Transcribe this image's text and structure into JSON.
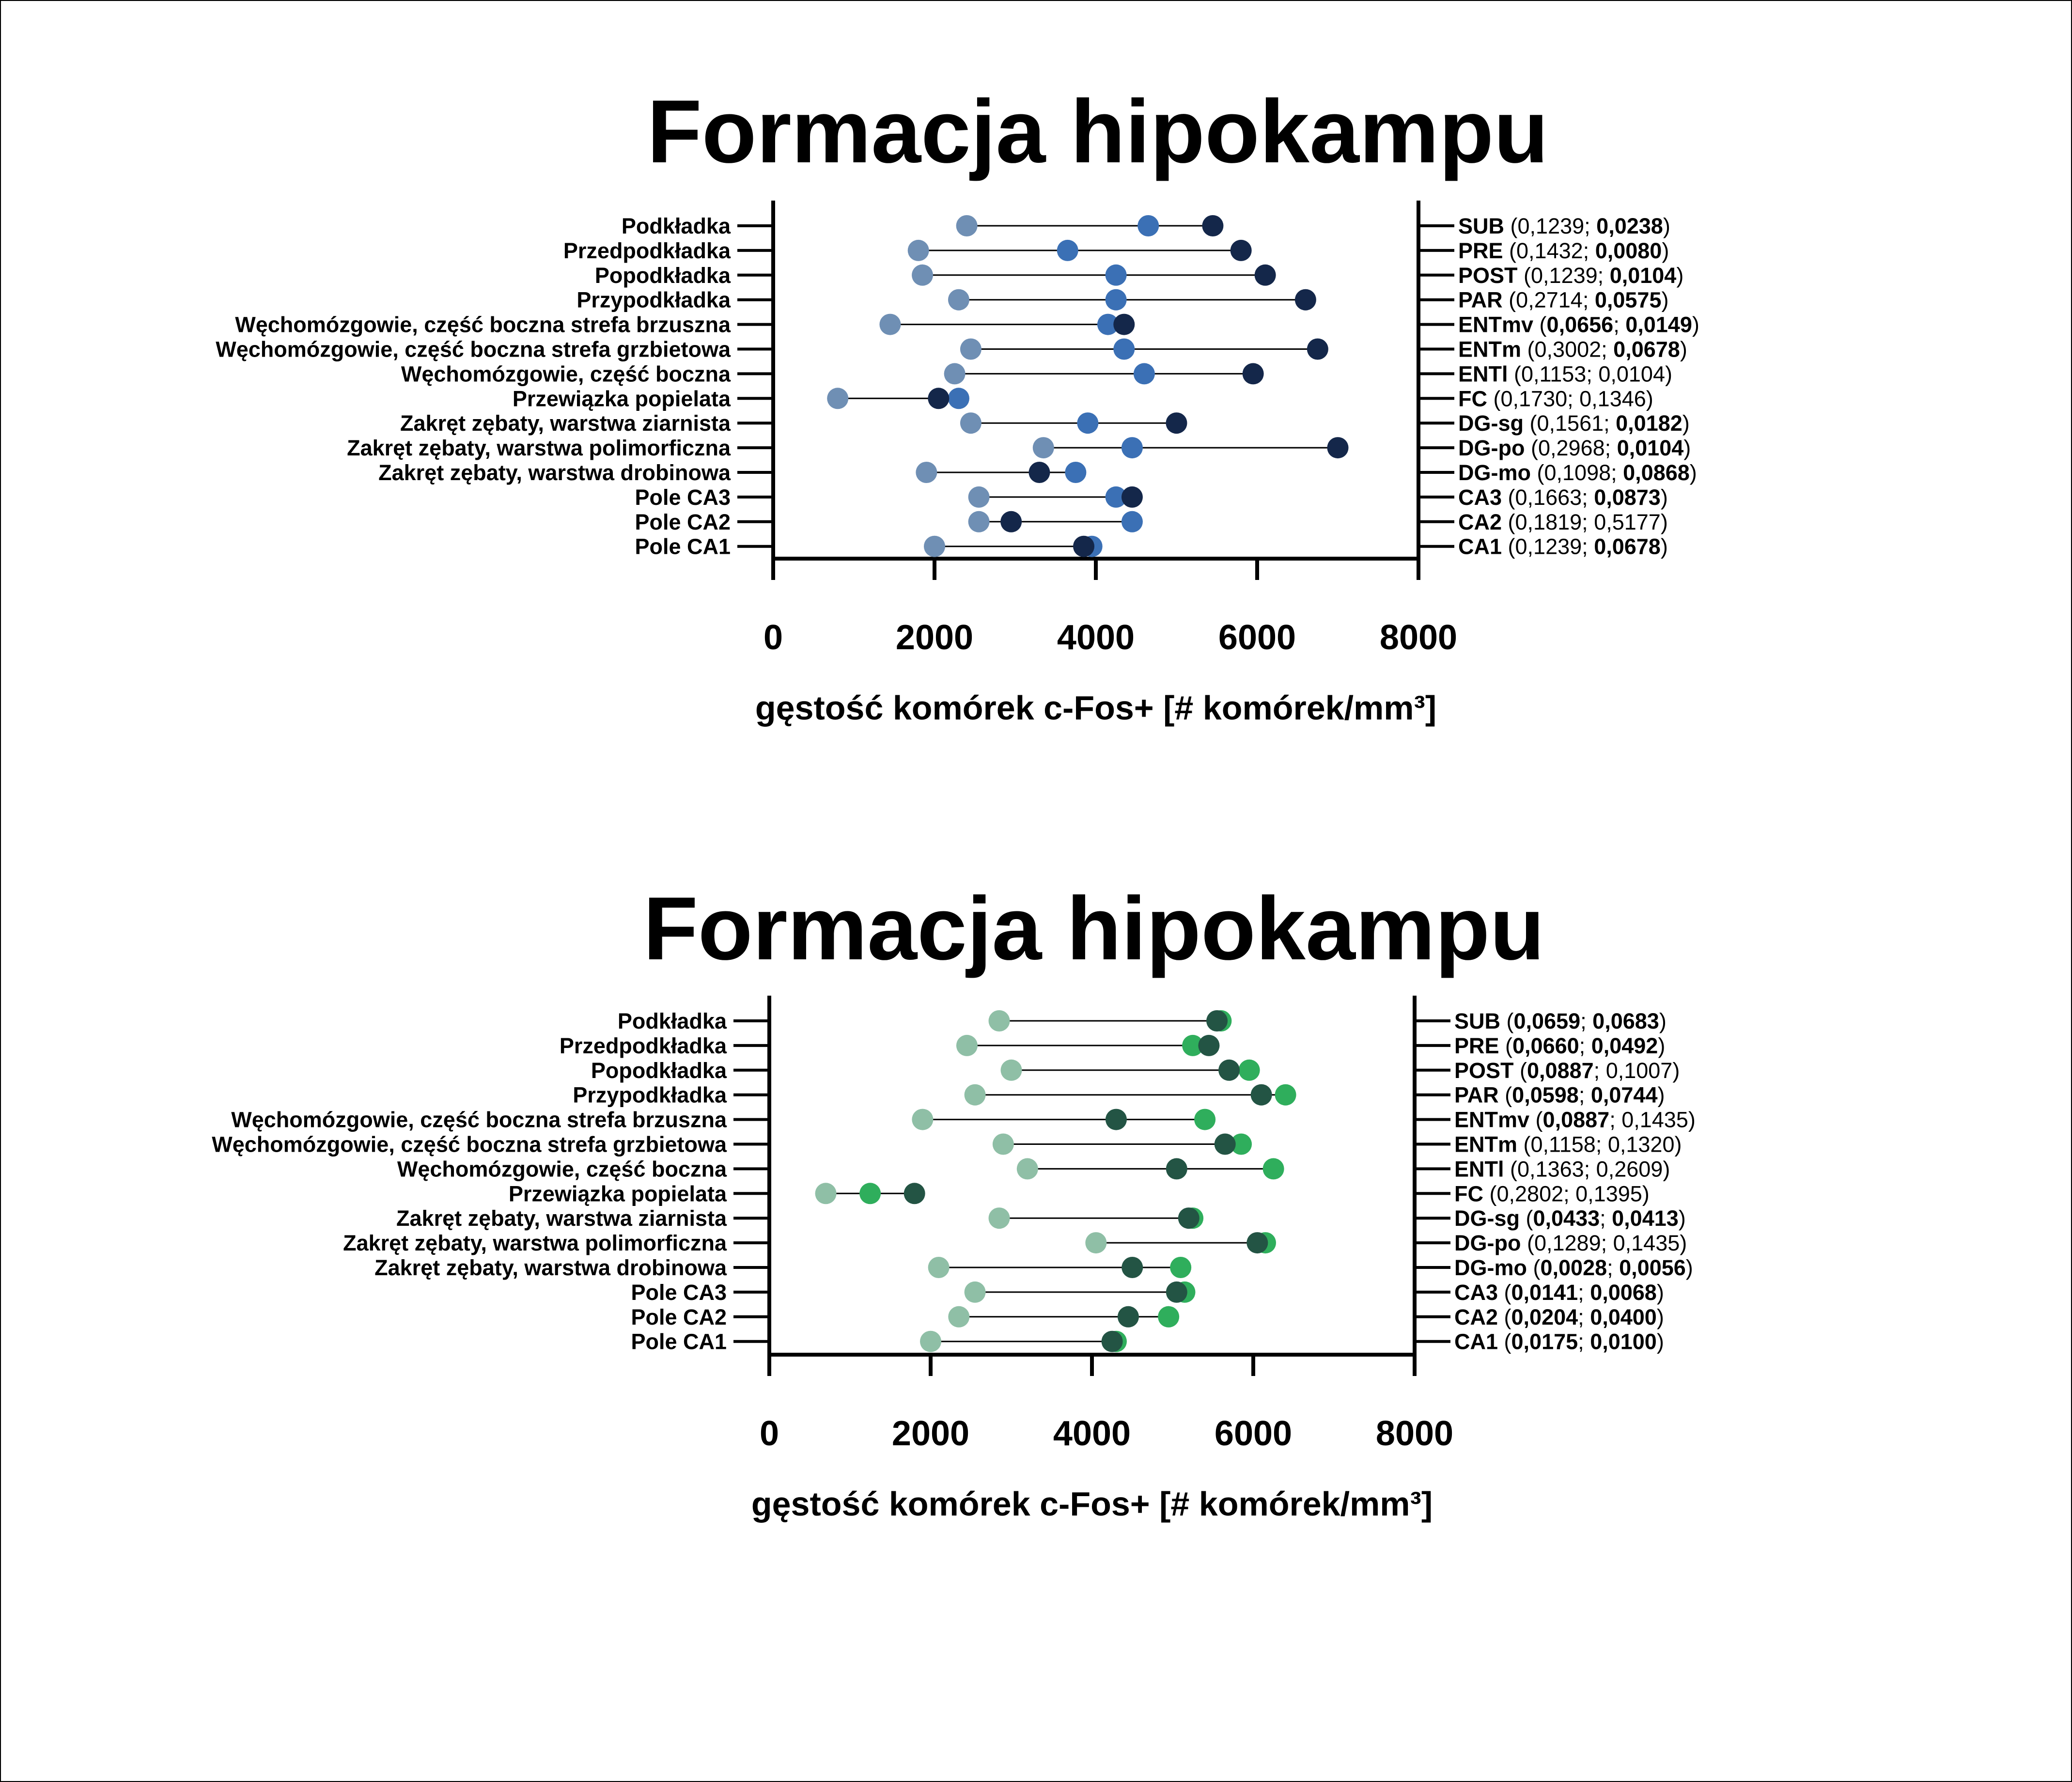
{
  "chart_data": [
    {
      "type": "dumbbell",
      "title": "Formacja hipokampu",
      "xlabel": "gęstość  komórek c-Fos+ [# komórek/mm³]",
      "xlim": [
        0,
        8000
      ],
      "xticks": [
        "0",
        "2000",
        "4000",
        "6000",
        "8000"
      ],
      "categories": [
        "Podkładka",
        "Przedpodkładka",
        "Popodkładka",
        "Przypodkładka",
        "Węchomózgowie, część boczna strefa brzuszna",
        "Węchomózgowie, część boczna strefa grzbietowa",
        "Węchomózgowie, część boczna",
        "Przewiązka popielata",
        "Zakręt zębaty, warstwa ziarnista",
        "Zakręt zębaty, warstwa polimorficzna",
        "Zakręt zębaty, warstwa drobinowa",
        "Pole CA3",
        "Pole CA2",
        "Pole CA1"
      ],
      "series": [
        {
          "color": "#6f8fb4",
          "values": [
            2400,
            1800,
            1850,
            2300,
            1450,
            2450,
            2250,
            800,
            2450,
            3350,
            1900,
            2550,
            2550,
            2000
          ]
        },
        {
          "color": "#3b70b5",
          "values": [
            4650,
            3650,
            4250,
            4250,
            4150,
            4350,
            4600,
            2300,
            3900,
            4450,
            3750,
            4250,
            4450,
            3950
          ]
        },
        {
          "color": "#14274a",
          "values": [
            5450,
            5800,
            6100,
            6600,
            4350,
            6750,
            5950,
            2050,
            5000,
            7000,
            3300,
            4450,
            2950,
            3850
          ]
        }
      ],
      "annotations": [
        {
          "abbr": "SUB",
          "p1": "0,1239",
          "p1_bold": false,
          "p2": "0,0238",
          "p2_bold": true
        },
        {
          "abbr": "PRE",
          "p1": "0,1432",
          "p1_bold": false,
          "p2": "0,0080",
          "p2_bold": true
        },
        {
          "abbr": "POST",
          "p1": "0,1239",
          "p1_bold": false,
          "p2": "0,0104",
          "p2_bold": true
        },
        {
          "abbr": "PAR",
          "p1": "0,2714",
          "p1_bold": false,
          "p2": "0,0575",
          "p2_bold": true
        },
        {
          "abbr": "ENTmv",
          "p1": "0,0656",
          "p1_bold": true,
          "p2": "0,0149",
          "p2_bold": true
        },
        {
          "abbr": "ENTm",
          "p1": "0,3002",
          "p1_bold": false,
          "p2": "0,0678",
          "p2_bold": true
        },
        {
          "abbr": "ENTl",
          "p1": "0,1153",
          "p1_bold": false,
          "p2": "0,0104",
          "p2_bold": false
        },
        {
          "abbr": "FC",
          "p1": "0,1730",
          "p1_bold": false,
          "p2": "0,1346",
          "p2_bold": false
        },
        {
          "abbr": "DG-sg",
          "p1": "0,1561",
          "p1_bold": false,
          "p2": "0,0182",
          "p2_bold": true
        },
        {
          "abbr": "DG-po",
          "p1": "0,2968",
          "p1_bold": false,
          "p2": "0,0104",
          "p2_bold": true
        },
        {
          "abbr": "DG-mo",
          "p1": "0,1098",
          "p1_bold": false,
          "p2": "0,0868",
          "p2_bold": true
        },
        {
          "abbr": "CA3",
          "p1": "0,1663",
          "p1_bold": false,
          "p2": "0,0873",
          "p2_bold": true
        },
        {
          "abbr": "CA2",
          "p1": "0,1819",
          "p1_bold": false,
          "p2": "0,5177",
          "p2_bold": false
        },
        {
          "abbr": "CA1",
          "p1": "0,1239",
          "p1_bold": false,
          "p2": "0,0678",
          "p2_bold": true
        }
      ]
    },
    {
      "type": "dumbbell",
      "title": "Formacja hipokampu",
      "xlabel": "gęstość  komórek c-Fos+ [# komórek/mm³]",
      "xlim": [
        0,
        8000
      ],
      "xticks": [
        "0",
        "2000",
        "4000",
        "6000",
        "8000"
      ],
      "categories": [
        "Podkładka",
        "Przedpodkładka",
        "Popodkładka",
        "Przypodkładka",
        "Węchomózgowie, część boczna strefa brzuszna",
        "Węchomózgowie, część boczna strefa grzbietowa",
        "Węchomózgowie, część boczna",
        "Przewiązka popielata",
        "Zakręt zębaty, warstwa ziarnista",
        "Zakręt zębaty, warstwa polimorficzna",
        "Zakręt zębaty, warstwa drobinowa",
        "Pole CA3",
        "Pole CA2",
        "Pole CA1"
      ],
      "series": [
        {
          "color": "#8fbfa6",
          "values": [
            2850,
            2450,
            3000,
            2550,
            1900,
            2900,
            3200,
            700,
            2850,
            4050,
            2100,
            2550,
            2350,
            2000
          ]
        },
        {
          "color": "#2fae5c",
          "values": [
            5600,
            5250,
            5950,
            6400,
            5400,
            5850,
            6250,
            1250,
            5250,
            6150,
            5100,
            5150,
            4950,
            4300
          ]
        },
        {
          "color": "#235444",
          "values": [
            5550,
            5450,
            5700,
            6100,
            4300,
            5650,
            5050,
            1800,
            5200,
            6050,
            4500,
            5050,
            4450,
            4250
          ]
        }
      ],
      "annotations": [
        {
          "abbr": "SUB",
          "p1": "0,0659",
          "p1_bold": true,
          "p2": "0,0683",
          "p2_bold": true
        },
        {
          "abbr": "PRE",
          "p1": "0,0660",
          "p1_bold": true,
          "p2": "0,0492",
          "p2_bold": true
        },
        {
          "abbr": "POST",
          "p1": "0,0887",
          "p1_bold": true,
          "p2": "0,1007",
          "p2_bold": false
        },
        {
          "abbr": "PAR",
          "p1": "0,0598",
          "p1_bold": true,
          "p2": "0,0744",
          "p2_bold": true
        },
        {
          "abbr": "ENTmv",
          "p1": "0,0887",
          "p1_bold": true,
          "p2": "0,1435",
          "p2_bold": false
        },
        {
          "abbr": "ENTm",
          "p1": "0,1158",
          "p1_bold": false,
          "p2": "0,1320",
          "p2_bold": false
        },
        {
          "abbr": "ENTl",
          "p1": "0,1363",
          "p1_bold": false,
          "p2": "0,2609",
          "p2_bold": false
        },
        {
          "abbr": "FC",
          "p1": "0,2802",
          "p1_bold": false,
          "p2": "0,1395",
          "p2_bold": false
        },
        {
          "abbr": "DG-sg",
          "p1": "0,0433",
          "p1_bold": true,
          "p2": "0,0413",
          "p2_bold": true
        },
        {
          "abbr": "DG-po",
          "p1": "0,1289",
          "p1_bold": false,
          "p2": "0,1435",
          "p2_bold": false
        },
        {
          "abbr": "DG-mo",
          "p1": "0,0028",
          "p1_bold": true,
          "p2": "0,0056",
          "p2_bold": true
        },
        {
          "abbr": "CA3",
          "p1": "0,0141",
          "p1_bold": true,
          "p2": "0,0068",
          "p2_bold": true
        },
        {
          "abbr": "CA2",
          "p1": "0,0204",
          "p1_bold": true,
          "p2": "0,0400",
          "p2_bold": true
        },
        {
          "abbr": "CA1",
          "p1": "0,0175",
          "p1_bold": true,
          "p2": "0,0100",
          "p2_bold": true
        }
      ]
    }
  ]
}
